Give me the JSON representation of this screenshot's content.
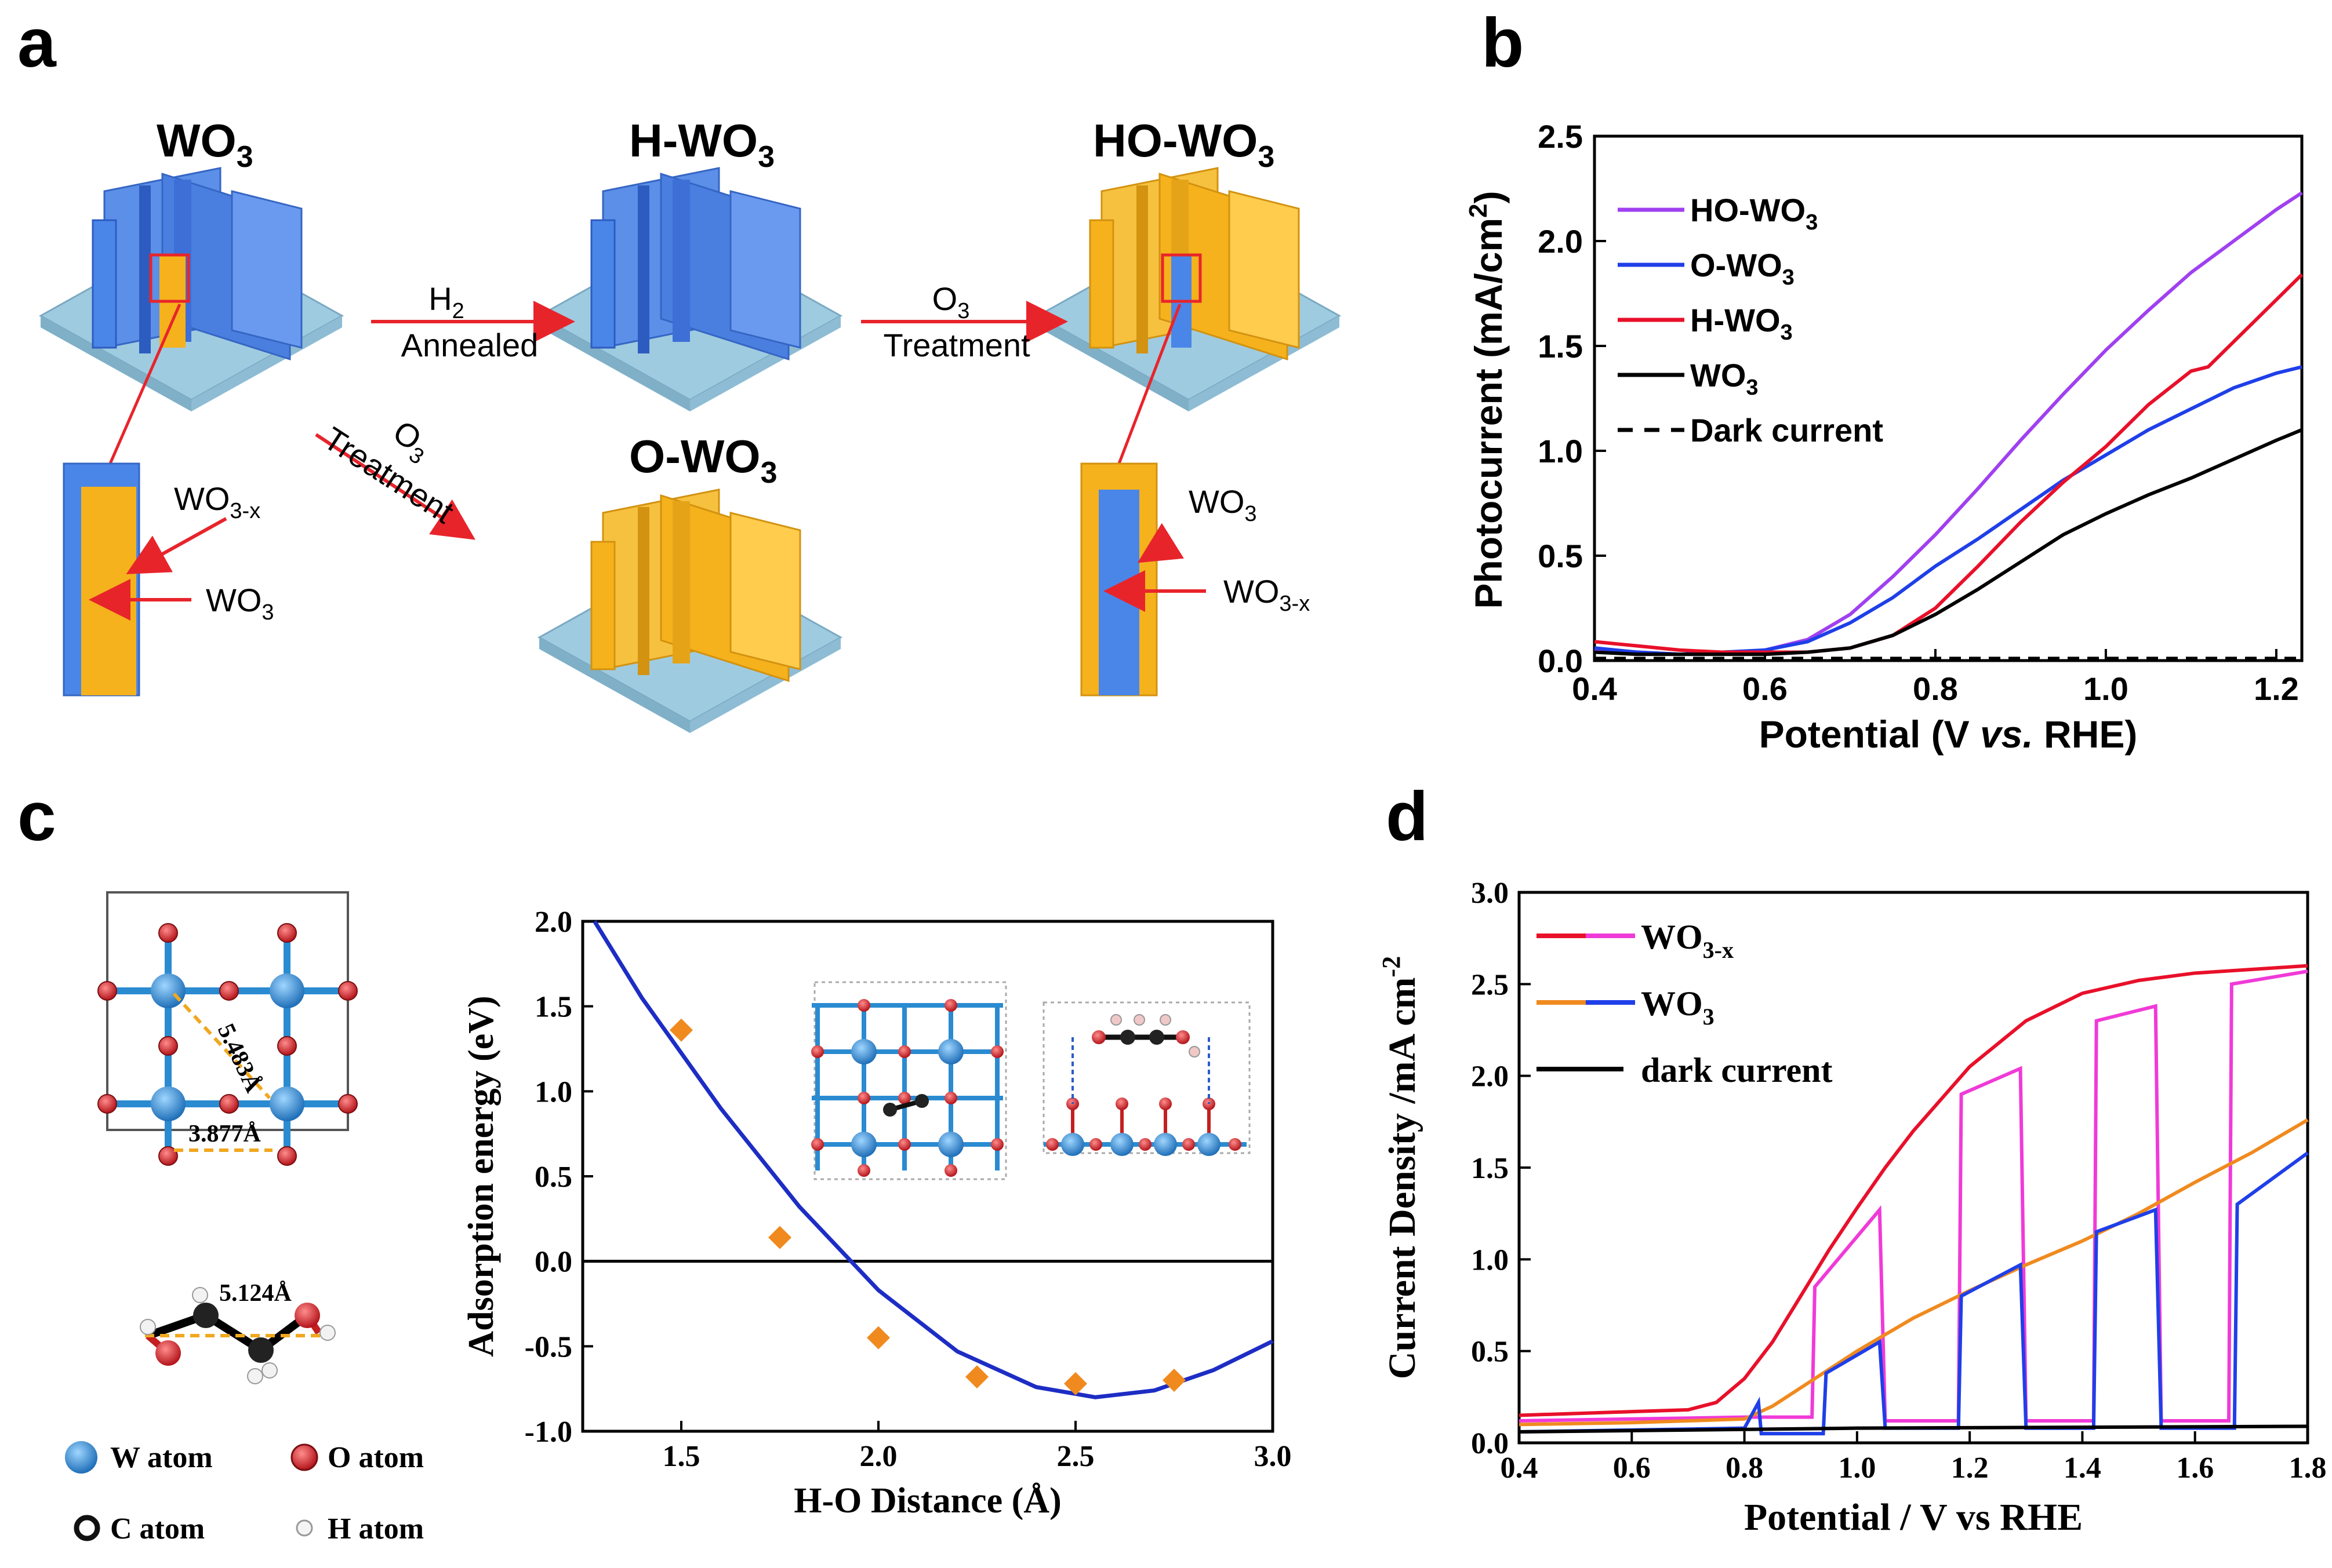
{
  "panel_labels": {
    "a": "a",
    "b": "b",
    "c": "c",
    "d": "d"
  },
  "panel_a": {
    "title_wo3": "WO",
    "title_wo3_sub": "3",
    "title_hwo3": "H-WO",
    "title_hwo3_sub": "3",
    "title_howo3": "HO-WO",
    "title_howo3_sub": "3",
    "title_owo3": "O-WO",
    "title_owo3_sub": "3",
    "arrow1_top": "H",
    "arrow1_top_sub": "2",
    "arrow1_bottom": "Annealed",
    "arrow2_top": "O",
    "arrow2_top_sub": "3",
    "arrow2_bottom": "Treatment",
    "arrow3_top": "O",
    "arrow3_top_sub": "3",
    "arrow3_bottom": "Treatment",
    "left_inset": {
      "outer": "WO",
      "outer_sub": "3-x",
      "inner": "WO",
      "inner_sub": "3"
    },
    "right_inset": {
      "outer": "WO",
      "outer_sub": "3",
      "inner": "WO",
      "inner_sub": "3-x"
    },
    "colors": {
      "blue": "#4a86e8",
      "yellow": "#f5b21c",
      "substrate": "#9fcbe0",
      "arrow": "#e8242b"
    }
  },
  "panel_c": {
    "dist1": "5.483Å",
    "dist2": "3.877Å",
    "dist3": "5.124Å",
    "legend": [
      {
        "label": "W atom",
        "color": "#2a8bd1"
      },
      {
        "label": "O atom",
        "color": "#d7262b"
      },
      {
        "label": "C atom",
        "color": "#222222"
      },
      {
        "label": "H atom",
        "color": "#f0f0f0"
      }
    ]
  },
  "chart_data": [
    {
      "id": "b",
      "type": "line",
      "xlabel_main": "Potential (V ",
      "xlabel_italic": "vs.",
      "xlabel_end": " RHE)",
      "ylabel": "Photocurrent (mA/cm",
      "ylabel_sup": "2",
      "ylabel_end": ")",
      "xlim": [
        0.4,
        1.23
      ],
      "ylim": [
        0,
        2.5
      ],
      "xticks": [
        "0.4",
        "0.6",
        "0.8",
        "1.0",
        "1.2"
      ],
      "yticks": [
        "0.0",
        "0.5",
        "1.0",
        "1.5",
        "2.0",
        "2.5"
      ],
      "legend": [
        {
          "label": "HO-WO",
          "sub": "3",
          "color": "#a040f0",
          "dash": false
        },
        {
          "label": "O-WO",
          "sub": "3",
          "color": "#1f3fe8",
          "dash": false
        },
        {
          "label": "H-WO",
          "sub": "3",
          "color": "#e8102a",
          "dash": false
        },
        {
          "label": "WO",
          "sub": "3",
          "color": "#000000",
          "dash": false
        },
        {
          "label": "Dark current",
          "sub": "",
          "color": "#000000",
          "dash": true
        }
      ],
      "series": [
        {
          "name": "HO-WO3",
          "color": "#a040f0",
          "x": [
            0.4,
            0.45,
            0.5,
            0.55,
            0.6,
            0.65,
            0.7,
            0.75,
            0.8,
            0.85,
            0.9,
            0.95,
            1.0,
            1.05,
            1.1,
            1.15,
            1.2,
            1.23
          ],
          "y": [
            0.05,
            0.04,
            0.03,
            0.03,
            0.05,
            0.1,
            0.22,
            0.4,
            0.6,
            0.82,
            1.05,
            1.27,
            1.48,
            1.67,
            1.85,
            2.0,
            2.15,
            2.23
          ]
        },
        {
          "name": "O-WO3",
          "color": "#1f3fe8",
          "x": [
            0.4,
            0.45,
            0.5,
            0.55,
            0.6,
            0.65,
            0.7,
            0.75,
            0.8,
            0.85,
            0.9,
            0.95,
            1.0,
            1.05,
            1.1,
            1.15,
            1.2,
            1.23
          ],
          "y": [
            0.06,
            0.04,
            0.03,
            0.04,
            0.05,
            0.09,
            0.18,
            0.3,
            0.45,
            0.58,
            0.72,
            0.86,
            0.98,
            1.1,
            1.2,
            1.3,
            1.37,
            1.4
          ]
        },
        {
          "name": "H-WO3",
          "color": "#e8102a",
          "x": [
            0.4,
            0.45,
            0.5,
            0.55,
            0.6,
            0.65,
            0.7,
            0.75,
            0.8,
            0.85,
            0.9,
            0.95,
            1.0,
            1.05,
            1.1,
            1.12,
            1.15,
            1.2,
            1.23
          ],
          "y": [
            0.09,
            0.07,
            0.05,
            0.04,
            0.04,
            0.04,
            0.06,
            0.12,
            0.25,
            0.45,
            0.66,
            0.85,
            1.02,
            1.22,
            1.38,
            1.4,
            1.52,
            1.72,
            1.84
          ]
        },
        {
          "name": "WO3",
          "color": "#000000",
          "x": [
            0.4,
            0.45,
            0.5,
            0.55,
            0.6,
            0.65,
            0.7,
            0.75,
            0.8,
            0.85,
            0.9,
            0.95,
            1.0,
            1.05,
            1.1,
            1.15,
            1.2,
            1.23
          ],
          "y": [
            0.04,
            0.03,
            0.03,
            0.03,
            0.03,
            0.04,
            0.06,
            0.12,
            0.22,
            0.34,
            0.47,
            0.6,
            0.7,
            0.79,
            0.87,
            0.96,
            1.05,
            1.1
          ]
        },
        {
          "name": "Dark current",
          "color": "#000000",
          "dash": true,
          "x": [
            0.4,
            0.6,
            0.8,
            1.0,
            1.23
          ],
          "y": [
            0.01,
            0.01,
            0.01,
            0.01,
            0.01
          ]
        }
      ]
    },
    {
      "id": "c",
      "type": "scatter",
      "xlabel": "H-O Distance (Å)",
      "ylabel": "Adsorption energy (eV)",
      "xlim": [
        1.25,
        3.0
      ],
      "ylim": [
        -1.0,
        2.0
      ],
      "xticks": [
        "1.5",
        "2.0",
        "2.5",
        "3.0"
      ],
      "yticks": [
        "-1.0",
        "-0.5",
        "0.0",
        "0.5",
        "1.0",
        "1.5",
        "2.0"
      ],
      "points": {
        "x": [
          1.5,
          1.75,
          2.0,
          2.25,
          2.5,
          2.75
        ],
        "y": [
          1.36,
          0.14,
          -0.45,
          -0.68,
          -0.72,
          -0.7
        ]
      },
      "fit": {
        "x": [
          1.28,
          1.4,
          1.6,
          1.8,
          2.0,
          2.2,
          2.4,
          2.55,
          2.7,
          2.85,
          3.0
        ],
        "y": [
          2.0,
          1.55,
          0.9,
          0.32,
          -0.17,
          -0.53,
          -0.74,
          -0.8,
          -0.76,
          -0.64,
          -0.47
        ]
      },
      "point_color": "#f08a1e",
      "fit_color": "#1d2dc4"
    },
    {
      "id": "d",
      "type": "line",
      "xlabel": "Potential / V vs RHE",
      "ylabel": "Current Density /mA cm",
      "ylabel_sup": "-2",
      "xlim": [
        0.4,
        1.8
      ],
      "ylim": [
        0,
        3.0
      ],
      "xticks": [
        "0.4",
        "0.6",
        "0.8",
        "1.0",
        "1.2",
        "1.4",
        "1.6",
        "1.8"
      ],
      "yticks": [
        "0.0",
        "0.5",
        "1.0",
        "1.5",
        "2.0",
        "2.5",
        "3.0"
      ],
      "legend": [
        {
          "label": "WO",
          "sub": "3-x",
          "colors": [
            "#e8102a",
            "#f03ad8"
          ]
        },
        {
          "label": "WO",
          "sub": "3",
          "colors": [
            "#f08a1e",
            "#1f3fe8"
          ]
        },
        {
          "label": "dark current",
          "sub": "",
          "colors": [
            "#000000"
          ]
        }
      ],
      "series": [
        {
          "name": "WO3-x light",
          "color": "#e8102a",
          "x": [
            0.4,
            0.5,
            0.6,
            0.7,
            0.75,
            0.8,
            0.85,
            0.9,
            0.95,
            1.0,
            1.05,
            1.1,
            1.2,
            1.3,
            1.4,
            1.5,
            1.6,
            1.7,
            1.8
          ],
          "y": [
            0.15,
            0.16,
            0.17,
            0.18,
            0.22,
            0.35,
            0.55,
            0.8,
            1.05,
            1.28,
            1.5,
            1.7,
            2.05,
            2.3,
            2.45,
            2.52,
            2.56,
            2.58,
            2.6
          ]
        },
        {
          "name": "WO3-x chopped",
          "color": "#f03ad8",
          "x": [
            0.4,
            0.8,
            0.92,
            0.925,
            1.04,
            1.05,
            1.18,
            1.185,
            1.29,
            1.3,
            1.42,
            1.425,
            1.53,
            1.54,
            1.66,
            1.665,
            1.8
          ],
          "y": [
            0.12,
            0.14,
            0.14,
            0.85,
            1.27,
            0.12,
            0.12,
            1.9,
            2.04,
            0.12,
            0.12,
            2.3,
            2.38,
            0.12,
            0.12,
            2.5,
            2.57
          ]
        },
        {
          "name": "WO3 light",
          "color": "#f08a1e",
          "x": [
            0.4,
            0.6,
            0.8,
            0.85,
            0.9,
            1.0,
            1.1,
            1.2,
            1.3,
            1.4,
            1.5,
            1.6,
            1.7,
            1.8
          ],
          "y": [
            0.1,
            0.11,
            0.13,
            0.2,
            0.3,
            0.5,
            0.68,
            0.83,
            0.97,
            1.1,
            1.25,
            1.42,
            1.58,
            1.76
          ]
        },
        {
          "name": "WO3 chopped",
          "color": "#1f3fe8",
          "x": [
            0.4,
            0.8,
            0.825,
            0.83,
            0.94,
            0.945,
            1.04,
            1.05,
            1.18,
            1.185,
            1.29,
            1.3,
            1.42,
            1.425,
            1.53,
            1.54,
            1.67,
            1.675,
            1.8
          ],
          "y": [
            0.06,
            0.08,
            0.22,
            0.05,
            0.05,
            0.38,
            0.55,
            0.08,
            0.08,
            0.8,
            0.97,
            0.08,
            0.08,
            1.15,
            1.27,
            0.08,
            0.08,
            1.3,
            1.58
          ]
        },
        {
          "name": "dark current",
          "color": "#000000",
          "x": [
            0.4,
            1.0,
            1.8
          ],
          "y": [
            0.06,
            0.08,
            0.09
          ]
        }
      ]
    }
  ]
}
